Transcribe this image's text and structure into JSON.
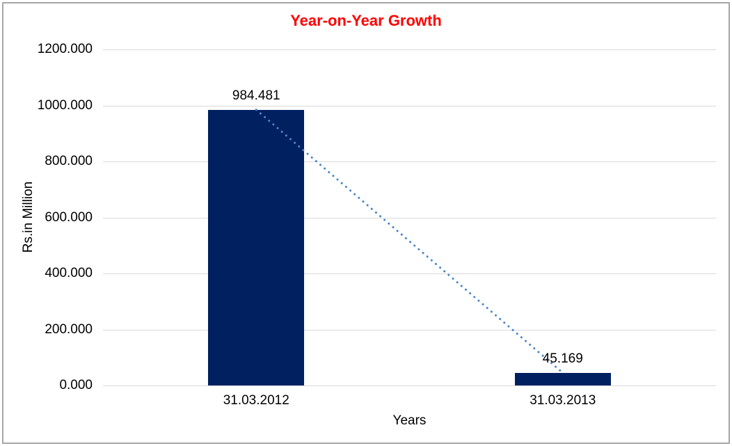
{
  "chart_data": {
    "type": "bar",
    "title": "Year-on-Year Growth",
    "xlabel": "Years",
    "ylabel": "Rs.in Million",
    "categories": [
      "31.03.2012",
      "31.03.2013"
    ],
    "values": [
      984.481,
      45.169
    ],
    "data_labels": [
      "984.481",
      "45.169"
    ],
    "ylim": [
      0,
      1200
    ],
    "ytick_step": 200,
    "yticks": [
      {
        "value": 0,
        "label": "0.000"
      },
      {
        "value": 200,
        "label": "200.000"
      },
      {
        "value": 400,
        "label": "400.000"
      },
      {
        "value": 600,
        "label": "600.000"
      },
      {
        "value": 800,
        "label": "800.000"
      },
      {
        "value": 1000,
        "label": "1000.000"
      },
      {
        "value": 1200,
        "label": "1200.000"
      }
    ],
    "grid": true,
    "legend": "none",
    "trendline": {
      "style": "dotted",
      "connects": "bar tops"
    },
    "colors": {
      "bar": "#002060",
      "trendline": "#4a86c8",
      "gridline": "#d9d9d9",
      "title": "#ff0000",
      "text": "#000000",
      "frame_border": "#a6a6a6"
    }
  }
}
